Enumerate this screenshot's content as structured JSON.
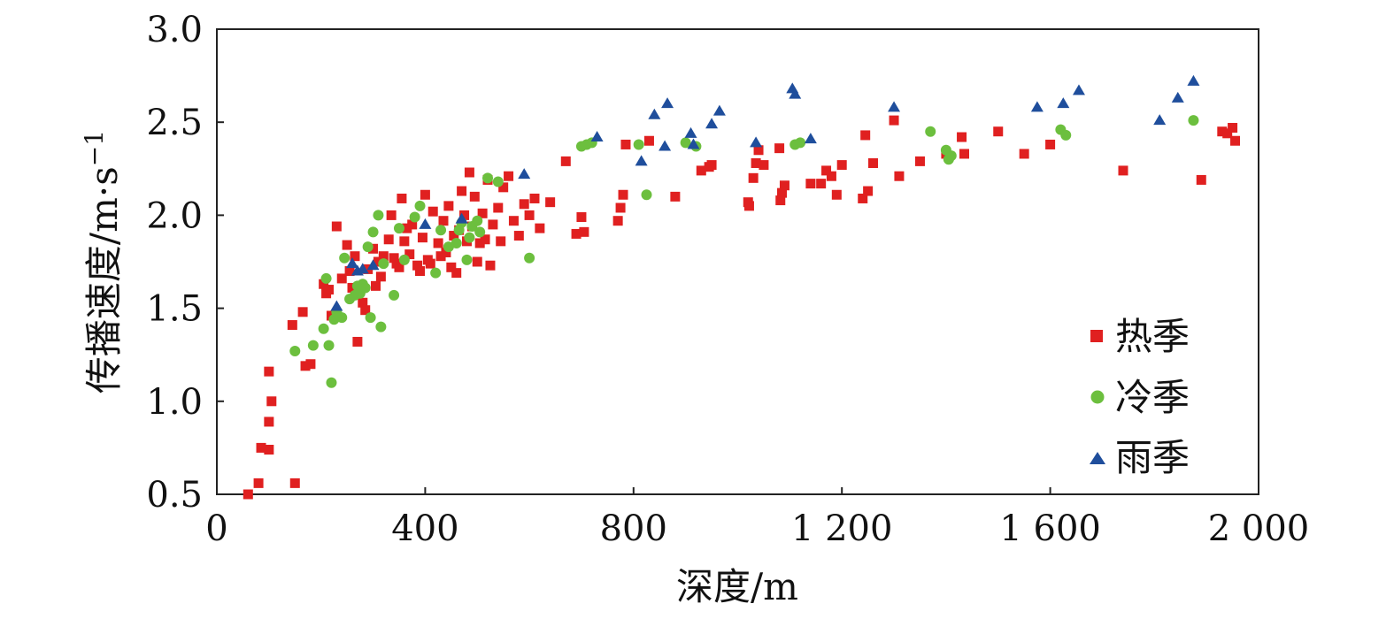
{
  "chart_data": {
    "type": "scatter",
    "title": "",
    "xlabel": "深度/m",
    "ylabel_main": "传播速度/m·s",
    "ylabel_sup": "−1",
    "xlim": [
      0,
      2000
    ],
    "ylim": [
      0.5,
      3.0
    ],
    "xticks": [
      0,
      400,
      800,
      1200,
      1600,
      2000
    ],
    "xtick_labels": [
      "0",
      "400",
      "800",
      "1 200",
      "1 600",
      "2 000"
    ],
    "yticks": [
      0.5,
      1.0,
      1.5,
      2.0,
      2.5,
      3.0
    ],
    "ytick_labels": [
      "0.5",
      "1.0",
      "1.5",
      "2.0",
      "2.5",
      "3.0"
    ],
    "grid": false,
    "legend_position": "right",
    "series": [
      {
        "name": "热季",
        "marker": "square",
        "color": "#e02020",
        "points": [
          [
            60,
            0.5
          ],
          [
            80,
            0.56
          ],
          [
            85,
            0.75
          ],
          [
            100,
            0.74
          ],
          [
            150,
            0.56
          ],
          [
            100,
            0.89
          ],
          [
            105,
            1.0
          ],
          [
            100,
            1.16
          ],
          [
            145,
            1.41
          ],
          [
            165,
            1.48
          ],
          [
            170,
            1.19
          ],
          [
            180,
            1.2
          ],
          [
            205,
            1.63
          ],
          [
            210,
            1.58
          ],
          [
            220,
            1.46
          ],
          [
            215,
            1.6
          ],
          [
            230,
            1.94
          ],
          [
            240,
            1.66
          ],
          [
            250,
            1.84
          ],
          [
            255,
            1.7
          ],
          [
            260,
            1.61
          ],
          [
            265,
            1.78
          ],
          [
            270,
            1.32
          ],
          [
            280,
            1.53
          ],
          [
            285,
            1.49
          ],
          [
            290,
            1.71
          ],
          [
            300,
            1.82
          ],
          [
            305,
            1.62
          ],
          [
            310,
            1.75
          ],
          [
            315,
            1.67
          ],
          [
            320,
            1.78
          ],
          [
            330,
            1.87
          ],
          [
            335,
            2.0
          ],
          [
            340,
            1.77
          ],
          [
            345,
            1.74
          ],
          [
            350,
            1.72
          ],
          [
            355,
            2.09
          ],
          [
            360,
            1.86
          ],
          [
            365,
            1.93
          ],
          [
            370,
            1.79
          ],
          [
            375,
            1.95
          ],
          [
            385,
            1.73
          ],
          [
            390,
            1.7
          ],
          [
            395,
            1.88
          ],
          [
            400,
            2.11
          ],
          [
            405,
            1.76
          ],
          [
            410,
            1.74
          ],
          [
            415,
            2.02
          ],
          [
            425,
            1.85
          ],
          [
            430,
            1.78
          ],
          [
            435,
            1.97
          ],
          [
            440,
            1.8
          ],
          [
            445,
            2.05
          ],
          [
            450,
            1.72
          ],
          [
            455,
            1.89
          ],
          [
            460,
            1.69
          ],
          [
            465,
            1.92
          ],
          [
            470,
            2.13
          ],
          [
            475,
            2.0
          ],
          [
            480,
            1.86
          ],
          [
            485,
            2.23
          ],
          [
            490,
            1.94
          ],
          [
            495,
            2.1
          ],
          [
            500,
            1.75
          ],
          [
            505,
            1.85
          ],
          [
            510,
            2.01
          ],
          [
            515,
            1.87
          ],
          [
            520,
            2.19
          ],
          [
            525,
            1.73
          ],
          [
            530,
            1.95
          ],
          [
            540,
            2.04
          ],
          [
            545,
            1.86
          ],
          [
            550,
            2.15
          ],
          [
            560,
            2.21
          ],
          [
            570,
            1.97
          ],
          [
            580,
            1.89
          ],
          [
            590,
            2.06
          ],
          [
            600,
            2.0
          ],
          [
            610,
            2.09
          ],
          [
            620,
            1.93
          ],
          [
            640,
            2.07
          ],
          [
            670,
            2.29
          ],
          [
            690,
            1.9
          ],
          [
            700,
            1.99
          ],
          [
            705,
            1.91
          ],
          [
            770,
            1.97
          ],
          [
            775,
            2.04
          ],
          [
            780,
            2.11
          ],
          [
            785,
            2.38
          ],
          [
            830,
            2.4
          ],
          [
            880,
            2.1
          ],
          [
            930,
            2.24
          ],
          [
            945,
            2.26
          ],
          [
            950,
            2.27
          ],
          [
            1020,
            2.07
          ],
          [
            1022,
            2.05
          ],
          [
            1030,
            2.2
          ],
          [
            1035,
            2.28
          ],
          [
            1040,
            2.35
          ],
          [
            1050,
            2.27
          ],
          [
            1080,
            2.36
          ],
          [
            1082,
            2.08
          ],
          [
            1085,
            2.12
          ],
          [
            1090,
            2.16
          ],
          [
            1140,
            2.17
          ],
          [
            1160,
            2.17
          ],
          [
            1170,
            2.24
          ],
          [
            1180,
            2.21
          ],
          [
            1190,
            2.11
          ],
          [
            1200,
            2.27
          ],
          [
            1240,
            2.09
          ],
          [
            1245,
            2.43
          ],
          [
            1250,
            2.13
          ],
          [
            1260,
            2.28
          ],
          [
            1300,
            2.51
          ],
          [
            1310,
            2.21
          ],
          [
            1350,
            2.29
          ],
          [
            1400,
            2.33
          ],
          [
            1430,
            2.42
          ],
          [
            1435,
            2.33
          ],
          [
            1500,
            2.45
          ],
          [
            1550,
            2.33
          ],
          [
            1600,
            2.38
          ],
          [
            1740,
            2.24
          ],
          [
            1890,
            2.19
          ],
          [
            1930,
            2.45
          ],
          [
            1940,
            2.44
          ],
          [
            1950,
            2.47
          ],
          [
            1955,
            2.4
          ]
        ]
      },
      {
        "name": "冷季",
        "marker": "circle",
        "color": "#6cbf3e",
        "points": [
          [
            150,
            1.27
          ],
          [
            185,
            1.3
          ],
          [
            205,
            1.39
          ],
          [
            210,
            1.66
          ],
          [
            215,
            1.3
          ],
          [
            220,
            1.1
          ],
          [
            225,
            1.44
          ],
          [
            230,
            1.48
          ],
          [
            240,
            1.45
          ],
          [
            245,
            1.77
          ],
          [
            255,
            1.55
          ],
          [
            265,
            1.57
          ],
          [
            270,
            1.62
          ],
          [
            275,
            1.58
          ],
          [
            280,
            1.63
          ],
          [
            285,
            1.61
          ],
          [
            290,
            1.83
          ],
          [
            295,
            1.45
          ],
          [
            300,
            1.91
          ],
          [
            310,
            2.0
          ],
          [
            315,
            1.4
          ],
          [
            320,
            1.74
          ],
          [
            340,
            1.57
          ],
          [
            350,
            1.93
          ],
          [
            360,
            1.76
          ],
          [
            380,
            1.99
          ],
          [
            390,
            2.05
          ],
          [
            420,
            1.69
          ],
          [
            430,
            1.92
          ],
          [
            445,
            1.83
          ],
          [
            460,
            1.85
          ],
          [
            465,
            1.92
          ],
          [
            470,
            1.96
          ],
          [
            480,
            1.76
          ],
          [
            485,
            1.88
          ],
          [
            490,
            1.94
          ],
          [
            500,
            1.97
          ],
          [
            505,
            1.91
          ],
          [
            520,
            2.2
          ],
          [
            540,
            2.18
          ],
          [
            600,
            1.77
          ],
          [
            700,
            2.37
          ],
          [
            710,
            2.38
          ],
          [
            720,
            2.39
          ],
          [
            810,
            2.38
          ],
          [
            825,
            2.11
          ],
          [
            900,
            2.39
          ],
          [
            920,
            2.37
          ],
          [
            1110,
            2.38
          ],
          [
            1120,
            2.39
          ],
          [
            1370,
            2.45
          ],
          [
            1400,
            2.35
          ],
          [
            1405,
            2.3
          ],
          [
            1410,
            2.32
          ],
          [
            1620,
            2.46
          ],
          [
            1630,
            2.43
          ],
          [
            1875,
            2.51
          ]
        ]
      },
      {
        "name": "雨季",
        "marker": "triangle",
        "color": "#1f4e9c",
        "points": [
          [
            230,
            1.51
          ],
          [
            260,
            1.74
          ],
          [
            270,
            1.7
          ],
          [
            280,
            1.71
          ],
          [
            300,
            1.73
          ],
          [
            400,
            1.95
          ],
          [
            470,
            1.98
          ],
          [
            590,
            2.22
          ],
          [
            730,
            2.42
          ],
          [
            815,
            2.29
          ],
          [
            840,
            2.54
          ],
          [
            860,
            2.37
          ],
          [
            865,
            2.6
          ],
          [
            910,
            2.44
          ],
          [
            915,
            2.38
          ],
          [
            950,
            2.49
          ],
          [
            965,
            2.56
          ],
          [
            1035,
            2.39
          ],
          [
            1105,
            2.68
          ],
          [
            1110,
            2.65
          ],
          [
            1140,
            2.41
          ],
          [
            1300,
            2.58
          ],
          [
            1575,
            2.58
          ],
          [
            1625,
            2.6
          ],
          [
            1655,
            2.67
          ],
          [
            1810,
            2.51
          ],
          [
            1845,
            2.63
          ],
          [
            1875,
            2.72
          ]
        ]
      }
    ]
  }
}
